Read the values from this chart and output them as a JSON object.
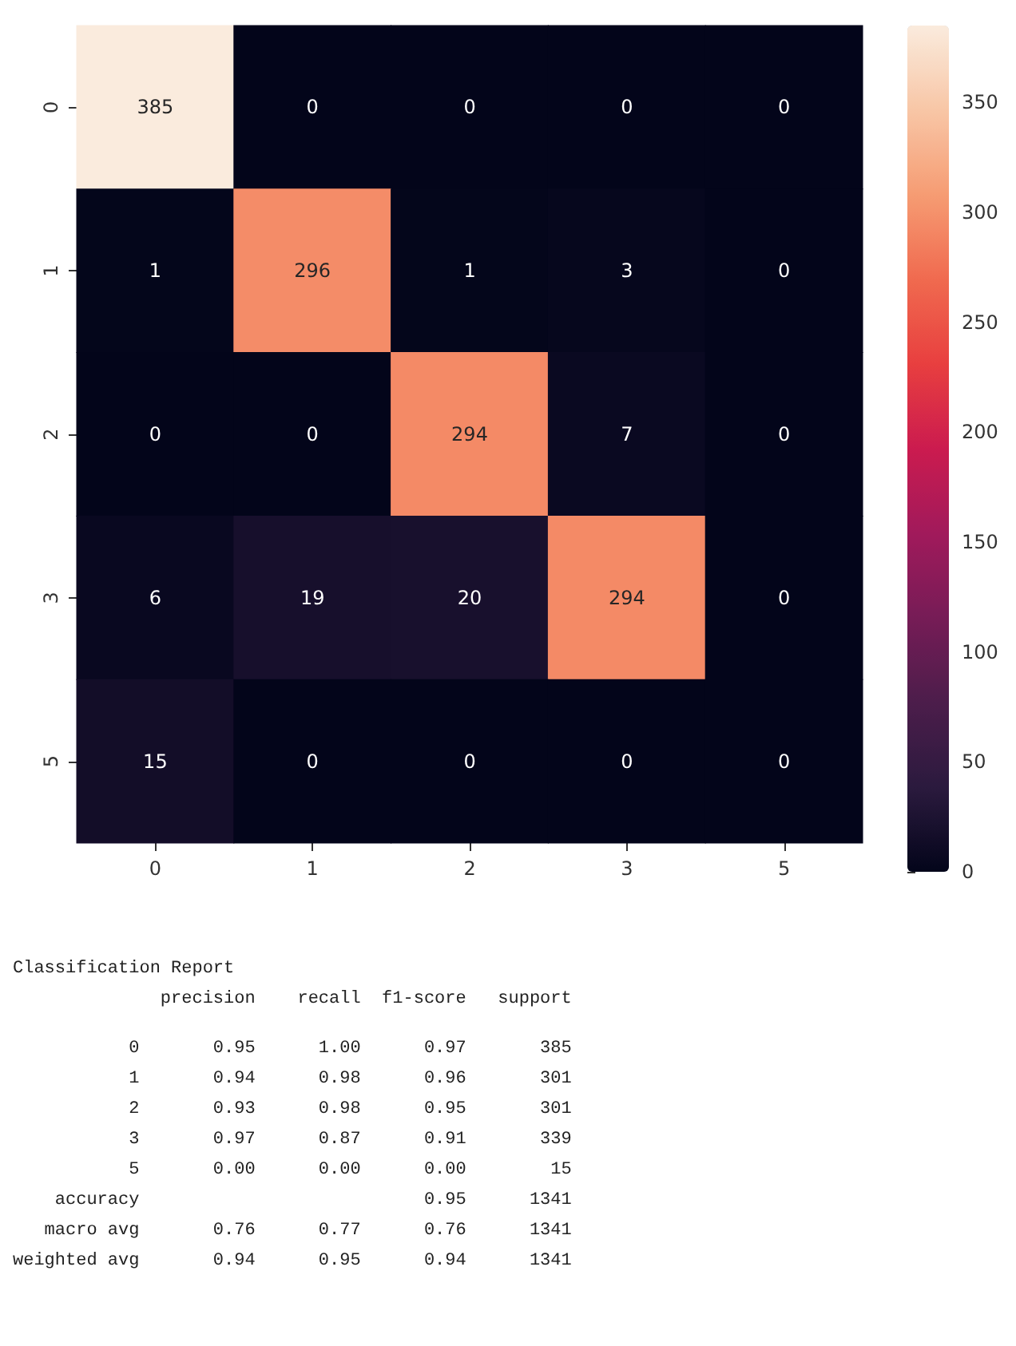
{
  "chart_data": [
    {
      "type": "heatmap",
      "categories": [
        "0",
        "1",
        "2",
        "3",
        "5"
      ],
      "y_categories": [
        "0",
        "1",
        "2",
        "3",
        "5"
      ],
      "cells": [
        [
          385,
          0,
          0,
          0,
          0
        ],
        [
          1,
          296,
          1,
          3,
          0
        ],
        [
          0,
          0,
          294,
          7,
          0
        ],
        [
          6,
          19,
          20,
          294,
          0
        ],
        [
          15,
          0,
          0,
          0,
          0
        ]
      ],
      "data_labels": true,
      "clim": [
        0,
        385
      ],
      "cticks": [
        0,
        50,
        100,
        150,
        200,
        250,
        300,
        350
      ]
    },
    {
      "type": "other",
      "title": "Classification Report",
      "annotations": [
        "              precision    recall  f1-score   support",
        "           0       0.95      1.00      0.97       385",
        "           1       0.94      0.98      0.96       301",
        "           2       0.93      0.98      0.95       301",
        "           3       0.97      0.87      0.91       339",
        "           5       0.00      0.00      0.00        15",
        "    accuracy                           0.95      1341",
        "   macro avg       0.76      0.77      0.76      1341",
        "weighted avg       0.94      0.95      0.94      1341"
      ]
    }
  ]
}
